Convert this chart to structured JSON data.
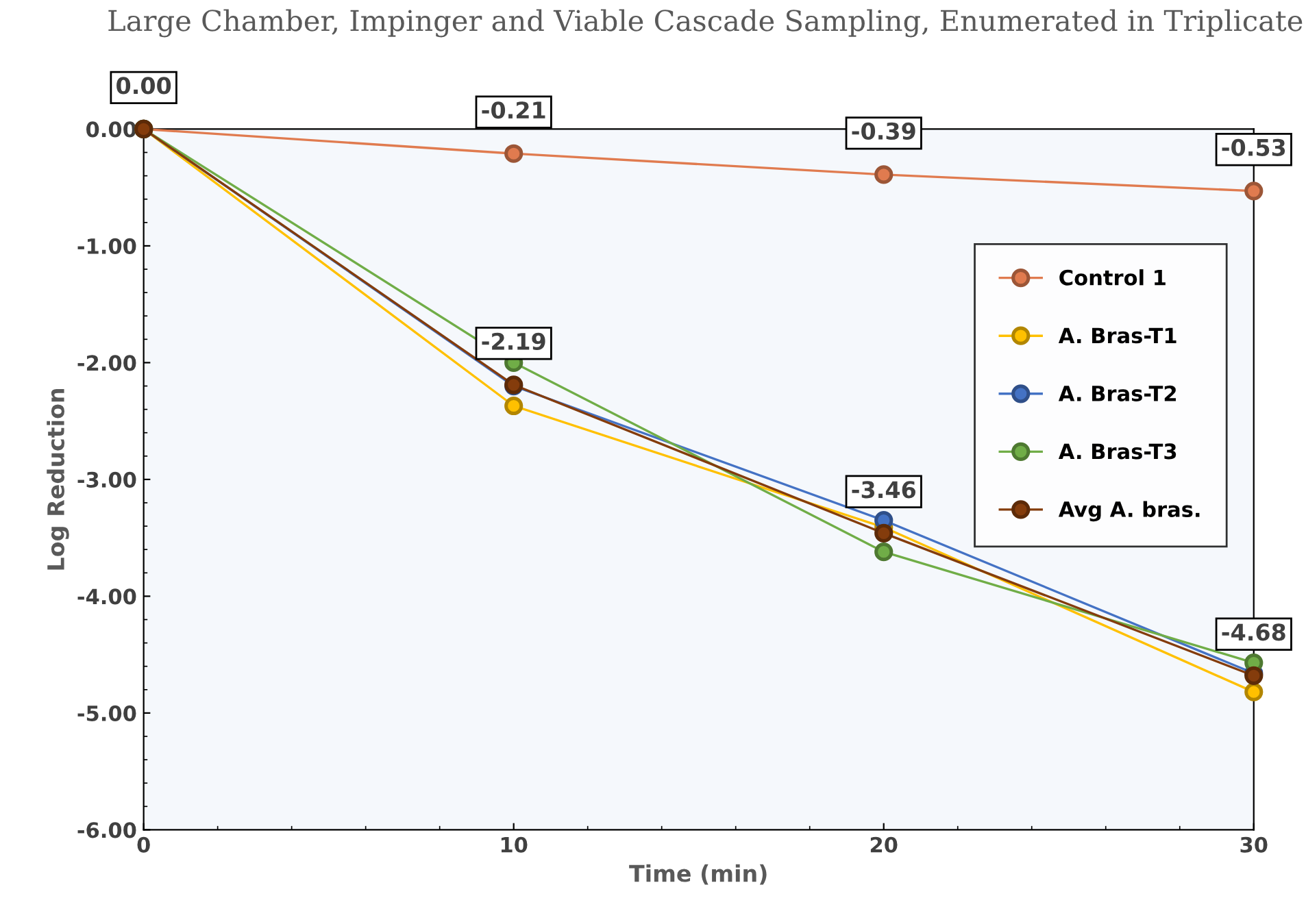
{
  "chart_data": {
    "type": "line",
    "title": "Large Chamber, Impinger and Viable Cascade Sampling, Enumerated in Triplicate",
    "xlabel": "Time (min)",
    "ylabel": "Log Reduction",
    "x": [
      0,
      10,
      20,
      30
    ],
    "series": [
      {
        "name": "Control 1",
        "color": "#e07b4f",
        "values": [
          0,
          -0.21,
          -0.39,
          -0.53
        ],
        "value_labels": [
          null,
          "-0.21",
          "-0.39",
          "-0.53"
        ]
      },
      {
        "name": "A. Bras-T1",
        "color": "#ffc000",
        "values": [
          0,
          -2.37,
          -3.41,
          -4.82
        ]
      },
      {
        "name": "A. Bras-T2",
        "color": "#4472c4",
        "values": [
          0,
          -2.2,
          -3.35,
          -4.66
        ]
      },
      {
        "name": "A. Bras-T3",
        "color": "#70ad47",
        "values": [
          0,
          -2.0,
          -3.62,
          -4.57
        ]
      },
      {
        "name": "Avg A. bras.",
        "color": "#843c0c",
        "values": [
          0,
          -2.19,
          -3.46,
          -4.68
        ],
        "value_labels": [
          "0.00",
          "-2.19",
          "-3.46",
          "-4.68"
        ]
      }
    ],
    "xlim": [
      0,
      30
    ],
    "xticks": [
      0,
      10,
      20,
      30
    ],
    "ylim": [
      -6,
      0
    ],
    "yticks": [
      {
        "value": -6,
        "label": "-6.00"
      },
      {
        "value": -5,
        "label": "-5.00"
      },
      {
        "value": -4,
        "label": "-4.00"
      },
      {
        "value": -3,
        "label": "-3.00"
      },
      {
        "value": -2,
        "label": "-2.00"
      },
      {
        "value": -1,
        "label": "-1.00"
      },
      {
        "value": 0,
        "label": "0.00"
      }
    ],
    "marker": "circle",
    "line_style": "solid",
    "legend": "right",
    "grid": false
  }
}
